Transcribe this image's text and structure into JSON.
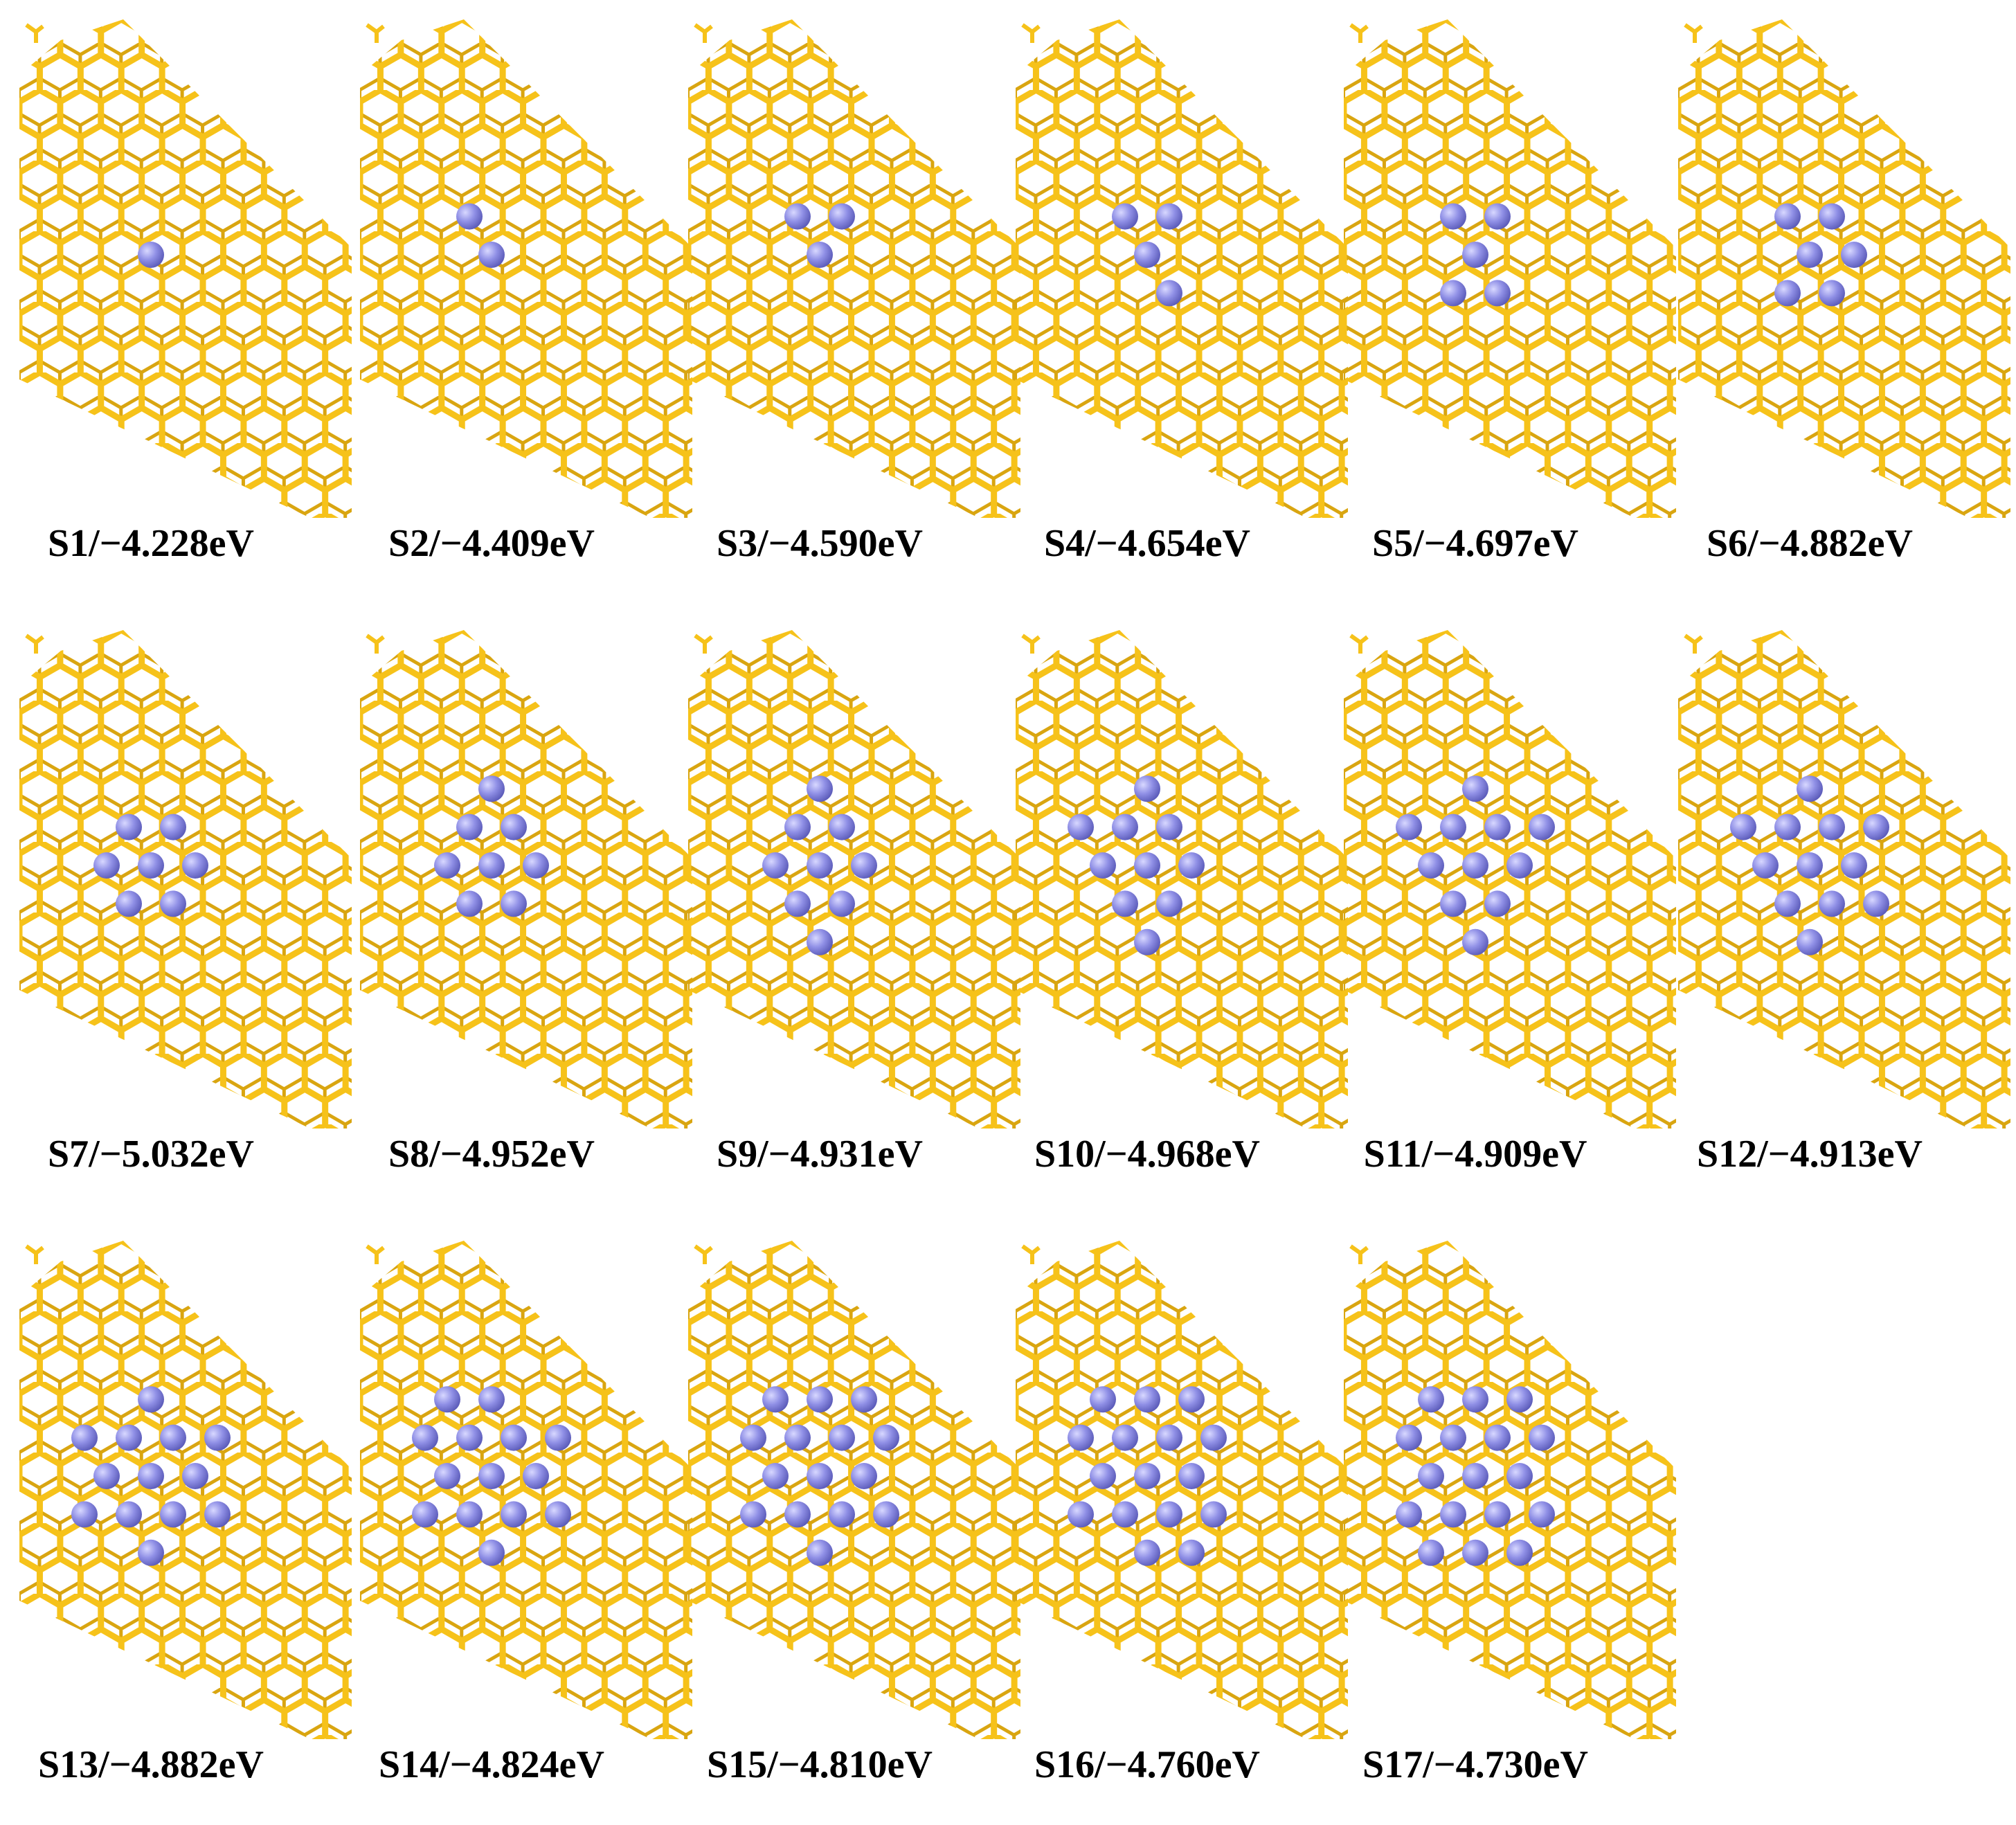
{
  "panels": [
    {
      "label": "S1/−4.228eV"
    },
    {
      "label": "S2/−4.409eV"
    },
    {
      "label": "S3/−4.590eV"
    },
    {
      "label": "S4/−4.654eV"
    },
    {
      "label": "S5/−4.697eV"
    },
    {
      "label": "S6/−4.882eV"
    },
    {
      "label": "S7/−5.032eV"
    },
    {
      "label": "S8/−4.952eV"
    },
    {
      "label": "S9/−4.931eV"
    },
    {
      "label": "S10/−4.968eV"
    },
    {
      "label": "S11/−4.909eV"
    },
    {
      "label": "S12/−4.913eV"
    },
    {
      "label": "S13/−4.882eV"
    },
    {
      "label": "S14/−4.824eV"
    },
    {
      "label": "S15/−4.810eV"
    },
    {
      "label": "S16/−4.760eV"
    },
    {
      "label": "S17/−4.730eV"
    }
  ]
}
